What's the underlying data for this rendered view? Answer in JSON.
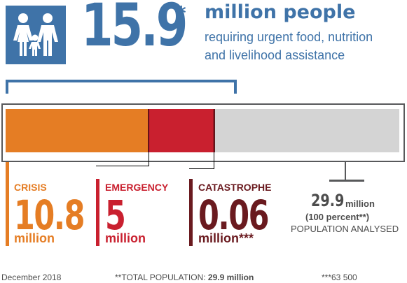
{
  "header": {
    "big_number": "15.9",
    "big_asterisk": "*",
    "headline": "million people",
    "subline_1": "requiring urgent food, nutrition",
    "subline_2": "and livelihood assistance",
    "icon": "family-icon"
  },
  "chart_data": {
    "type": "bar",
    "stacked": true,
    "unit": "million",
    "total": 29.9,
    "categories": [
      "CRISIS",
      "EMERGENCY",
      "CATASTROPHE"
    ],
    "values": [
      10.8,
      5,
      0.06
    ],
    "value_labels": [
      "10.8",
      "5",
      "0.06"
    ],
    "unit_labels": [
      "million",
      "million",
      "million***"
    ],
    "colors": [
      "#e57d24",
      "#c9202f",
      "#8a2129"
    ],
    "remainder_color": "#d4d4d4",
    "line_colors": [
      "#e57d24",
      "#c9202f",
      "#6a1a1f"
    ]
  },
  "population": {
    "value": "29.9",
    "unit": "million",
    "percent": "(100 percent**)",
    "label": "POPULATION ANALYSED"
  },
  "footer": {
    "date": "December 2018",
    "total_prefix": "**TOTAL POPULATION: ",
    "total_value": "29.9 million",
    "note": "***63 500"
  }
}
